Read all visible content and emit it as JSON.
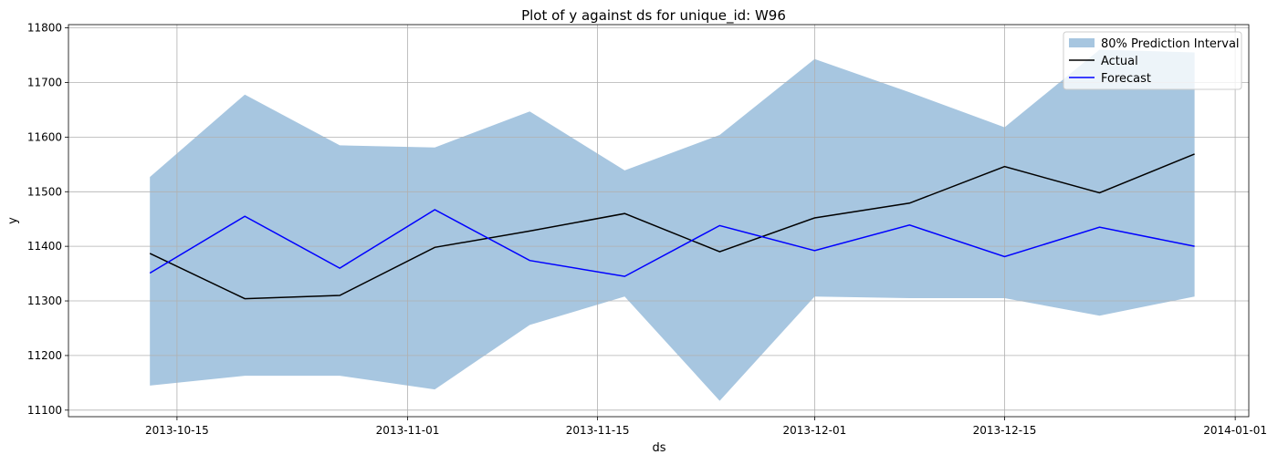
{
  "chart_data": {
    "type": "line",
    "title": "Plot of y against ds for unique_id: W96",
    "xlabel": "ds",
    "ylabel": "y",
    "x": [
      "2013-10-13",
      "2013-10-20",
      "2013-10-27",
      "2013-11-03",
      "2013-11-10",
      "2013-11-17",
      "2013-11-24",
      "2013-12-01",
      "2013-12-08",
      "2013-12-15",
      "2013-12-22",
      "2013-12-29"
    ],
    "series": [
      {
        "name": "Actual",
        "color": "#000000",
        "values": [
          11387,
          11304,
          11310,
          11398,
          11428,
          11460,
          11390,
          11452,
          11479,
          11546,
          11498,
          11569
        ]
      },
      {
        "name": "Forecast",
        "color": "#0000ff",
        "values": [
          11351,
          11455,
          11360,
          11467,
          11374,
          11345,
          11438,
          11392,
          11439,
          11381,
          11435,
          11400
        ]
      }
    ],
    "interval": {
      "name": "80% Prediction Interval",
      "color": "#a7c6e0",
      "lower": [
        11145,
        11163,
        11163,
        11138,
        11256,
        11308,
        11117,
        11308,
        11305,
        11305,
        11273,
        11308
      ],
      "upper": [
        11527,
        11678,
        11585,
        11581,
        11647,
        11539,
        11604,
        11743,
        11682,
        11618,
        11760,
        11755
      ]
    },
    "xlim": [
      "2013-10-07",
      "2014-01-02"
    ],
    "ylim": [
      11088,
      11806
    ],
    "xticks": [
      "2013-10-15",
      "2013-11-01",
      "2013-11-15",
      "2013-12-01",
      "2013-12-15",
      "2014-01-01"
    ],
    "yticks": [
      11100,
      11200,
      11300,
      11400,
      11500,
      11600,
      11700,
      11800
    ],
    "grid": true,
    "legend_position": "top-right"
  }
}
